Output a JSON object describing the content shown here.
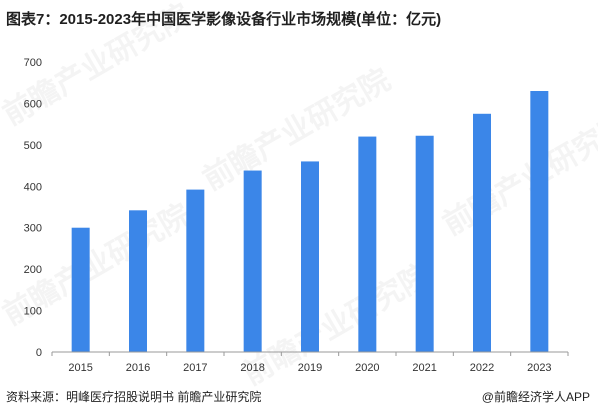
{
  "title": "图表7：2015-2023年中国医学影像设备行业市场规模(单位：亿元)",
  "source": "资料来源：明峰医疗招股说明书 前瞻产业研究院",
  "brand": "@前瞻经济学人APP",
  "watermark": "前瞻产业研究院",
  "colors": {
    "bar": "#3b86e8",
    "axis": "#9a9a9a",
    "text": "#333333"
  },
  "chart_data": {
    "type": "bar",
    "categories": [
      "2015",
      "2016",
      "2017",
      "2018",
      "2019",
      "2020",
      "2021",
      "2022",
      "2023"
    ],
    "values": [
      300,
      342,
      392,
      438,
      460,
      520,
      522,
      575,
      630
    ],
    "yticks": [
      0,
      100,
      200,
      300,
      400,
      500,
      600,
      700
    ],
    "ylim": [
      0,
      700
    ],
    "grid": false
  }
}
